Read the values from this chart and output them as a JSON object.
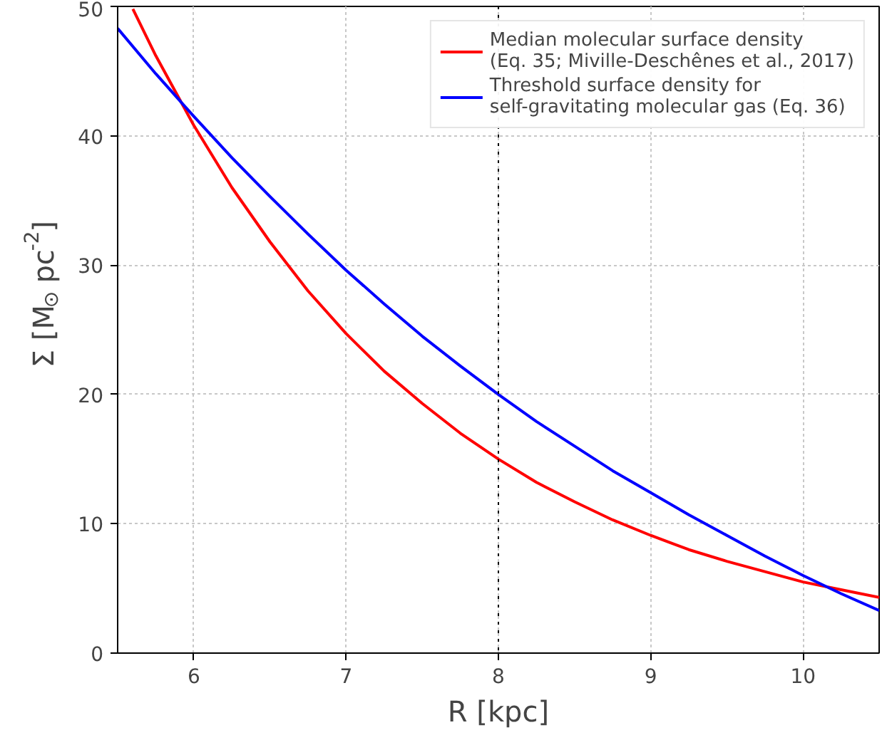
{
  "chart_data": {
    "type": "line",
    "xlabel": "R [kpc]",
    "ylabel": "Σ [M$_{⊙}$ pc$^{-2}$]",
    "xlim": [
      5.5,
      10.5
    ],
    "ylim": [
      0,
      50
    ],
    "xticks": [
      6,
      7,
      8,
      9,
      10
    ],
    "yticks": [
      0,
      10,
      20,
      30,
      40,
      50
    ],
    "grid": true,
    "legend": "top right",
    "line_style": "solid",
    "series": [
      {
        "name": "Median molecular surface density\n(Eq. 35; Miville-Deschênes et al., 2017)",
        "color": "#ff0000",
        "x": [
          5.6,
          5.75,
          6,
          6.25,
          6.5,
          6.75,
          7,
          7.25,
          7.5,
          7.75,
          8,
          8.25,
          8.5,
          8.75,
          9,
          9.25,
          9.5,
          9.75,
          10,
          10.25,
          10.5
        ],
        "values": [
          49.8,
          46.2,
          40.8,
          36.0,
          31.8,
          28.0,
          24.7,
          21.8,
          19.3,
          17.0,
          15.0,
          13.2,
          11.7,
          10.3,
          9.1,
          8.0,
          7.1,
          6.3,
          5.5,
          4.9,
          4.3
        ]
      },
      {
        "name": "Threshold surface density for\nself-gravitating molecular gas (Eq. 36)",
        "color": "#0000ff",
        "x": [
          5.5,
          5.75,
          6,
          6.25,
          6.5,
          6.75,
          7,
          7.25,
          7.5,
          7.75,
          8,
          8.25,
          8.5,
          8.75,
          9,
          9.25,
          9.5,
          9.75,
          10,
          10.25,
          10.5
        ],
        "values": [
          48.3,
          44.8,
          41.5,
          38.3,
          35.3,
          32.4,
          29.6,
          27.0,
          24.5,
          22.2,
          20.0,
          17.9,
          16.0,
          14.1,
          12.4,
          10.7,
          9.1,
          7.5,
          6.0,
          4.6,
          3.3
        ]
      }
    ],
    "ref_lines": [
      {
        "axis": "x",
        "value": 8,
        "color": "#000000",
        "line_style": "dotted"
      }
    ]
  }
}
